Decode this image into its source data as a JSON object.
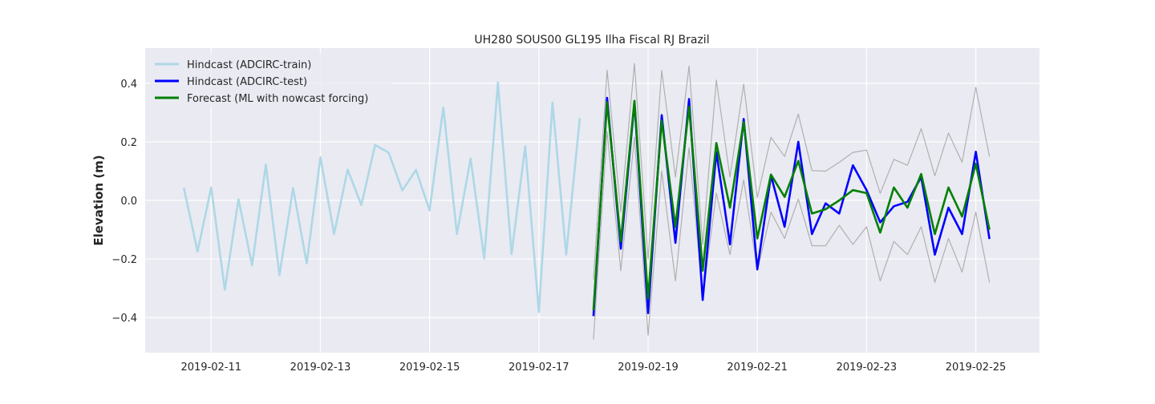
{
  "chart_data": {
    "type": "line",
    "title": "UH280 SOUS00 GL195 Ilha Fiscal RJ Brazil",
    "xlabel": "",
    "ylabel": "Elevation (m)",
    "xlim": [
      "2019-02-09T19:00",
      "2019-02-26T04:00"
    ],
    "ylim": [
      -0.52,
      0.52
    ],
    "grid": true,
    "legend_position": "upper-left",
    "x_ticks": [
      "2019-02-11",
      "2019-02-13",
      "2019-02-15",
      "2019-02-17",
      "2019-02-19",
      "2019-02-21",
      "2019-02-23",
      "2019-02-25"
    ],
    "y_ticks": [
      -0.4,
      -0.2,
      0.0,
      0.2,
      0.4
    ],
    "y_tick_labels": [
      "−0.4",
      "−0.2",
      "0.0",
      "0.2",
      "0.4"
    ],
    "series": [
      {
        "name": "Hindcast (ADCIRC-train)",
        "color": "#add8e6",
        "x": [
          "2019-02-10T12:00",
          "2019-02-10T18:00",
          "2019-02-11T00:00",
          "2019-02-11T06:00",
          "2019-02-11T12:00",
          "2019-02-11T18:00",
          "2019-02-12T00:00",
          "2019-02-12T06:00",
          "2019-02-12T12:00",
          "2019-02-12T18:00",
          "2019-02-13T00:00",
          "2019-02-13T06:00",
          "2019-02-13T12:00",
          "2019-02-13T18:00",
          "2019-02-14T00:00",
          "2019-02-14T06:00",
          "2019-02-14T12:00",
          "2019-02-14T18:00",
          "2019-02-15T00:00",
          "2019-02-15T06:00",
          "2019-02-15T12:00",
          "2019-02-15T18:00",
          "2019-02-16T00:00",
          "2019-02-16T06:00",
          "2019-02-16T12:00",
          "2019-02-16T18:00",
          "2019-02-17T00:00",
          "2019-02-17T06:00",
          "2019-02-17T12:00",
          "2019-02-17T18:00"
        ],
        "y": [
          0.043,
          -0.175,
          0.044,
          -0.305,
          0.004,
          -0.222,
          0.122,
          -0.255,
          0.042,
          -0.215,
          0.147,
          -0.114,
          0.105,
          -0.016,
          0.189,
          0.163,
          0.034,
          0.104,
          -0.034,
          0.317,
          -0.115,
          0.143,
          -0.198,
          0.402,
          -0.183,
          0.185,
          -0.381,
          0.334,
          -0.185,
          0.281
        ]
      },
      {
        "name": "Hindcast (ADCIRC-test)",
        "color": "#0000ff",
        "x": [
          "2019-02-18T00:00",
          "2019-02-18T06:00",
          "2019-02-18T12:00",
          "2019-02-18T18:00",
          "2019-02-19T00:00",
          "2019-02-19T06:00",
          "2019-02-19T12:00",
          "2019-02-19T18:00",
          "2019-02-20T00:00",
          "2019-02-20T06:00",
          "2019-02-20T12:00",
          "2019-02-20T18:00",
          "2019-02-21T00:00",
          "2019-02-21T06:00",
          "2019-02-21T12:00",
          "2019-02-21T18:00",
          "2019-02-22T00:00",
          "2019-02-22T06:00",
          "2019-02-22T12:00",
          "2019-02-22T18:00",
          "2019-02-23T00:00",
          "2019-02-23T06:00",
          "2019-02-23T12:00",
          "2019-02-23T18:00",
          "2019-02-24T00:00",
          "2019-02-24T06:00",
          "2019-02-24T12:00",
          "2019-02-24T18:00",
          "2019-02-25T00:00",
          "2019-02-25T06:00"
        ],
        "y": [
          -0.395,
          0.35,
          -0.165,
          0.335,
          -0.385,
          0.291,
          -0.145,
          0.346,
          -0.34,
          0.165,
          -0.15,
          0.278,
          -0.235,
          0.085,
          -0.09,
          0.2,
          -0.115,
          -0.01,
          -0.045,
          0.12,
          0.035,
          -0.075,
          -0.02,
          -0.005,
          0.08,
          -0.185,
          -0.025,
          -0.115,
          0.166,
          -0.132
        ]
      },
      {
        "name": "Forecast (ML with nowcast forcing)",
        "color": "#008000",
        "x": [
          "2019-02-18T00:00",
          "2019-02-18T06:00",
          "2019-02-18T12:00",
          "2019-02-18T18:00",
          "2019-02-19T00:00",
          "2019-02-19T06:00",
          "2019-02-19T12:00",
          "2019-02-19T18:00",
          "2019-02-20T00:00",
          "2019-02-20T06:00",
          "2019-02-20T12:00",
          "2019-02-20T18:00",
          "2019-02-21T00:00",
          "2019-02-21T06:00",
          "2019-02-21T12:00",
          "2019-02-21T18:00",
          "2019-02-22T00:00",
          "2019-02-22T06:00",
          "2019-02-22T12:00",
          "2019-02-22T18:00",
          "2019-02-23T00:00",
          "2019-02-23T06:00",
          "2019-02-23T12:00",
          "2019-02-23T18:00",
          "2019-02-24T00:00",
          "2019-02-24T06:00",
          "2019-02-24T12:00",
          "2019-02-24T18:00",
          "2019-02-25T00:00",
          "2019-02-25T06:00"
        ],
        "y": [
          -0.375,
          0.335,
          -0.14,
          0.34,
          -0.335,
          0.272,
          -0.09,
          0.32,
          -0.24,
          0.196,
          -0.025,
          0.268,
          -0.13,
          0.088,
          0.012,
          0.135,
          -0.045,
          -0.03,
          0.0,
          0.035,
          0.025,
          -0.11,
          0.044,
          -0.025,
          0.09,
          -0.115,
          0.044,
          -0.055,
          0.125,
          -0.1
        ]
      },
      {
        "name": "",
        "color": "#b0b0b0",
        "x": [
          "2019-02-18T00:00",
          "2019-02-18T06:00",
          "2019-02-18T12:00",
          "2019-02-18T18:00",
          "2019-02-19T00:00",
          "2019-02-19T06:00",
          "2019-02-19T12:00",
          "2019-02-19T18:00",
          "2019-02-20T00:00",
          "2019-02-20T06:00",
          "2019-02-20T12:00",
          "2019-02-20T18:00",
          "2019-02-21T00:00",
          "2019-02-21T06:00",
          "2019-02-21T12:00",
          "2019-02-21T18:00",
          "2019-02-22T00:00",
          "2019-02-22T06:00",
          "2019-02-22T12:00",
          "2019-02-22T18:00",
          "2019-02-23T00:00",
          "2019-02-23T06:00",
          "2019-02-23T12:00",
          "2019-02-23T18:00",
          "2019-02-24T00:00",
          "2019-02-24T06:00",
          "2019-02-24T12:00",
          "2019-02-24T18:00",
          "2019-02-25T00:00",
          "2019-02-25T06:00"
        ],
        "y": [
          -0.27,
          0.445,
          -0.04,
          0.467,
          -0.2,
          0.444,
          0.08,
          0.459,
          -0.15,
          0.411,
          0.08,
          0.397,
          0.01,
          0.215,
          0.15,
          0.295,
          0.102,
          0.1,
          0.13,
          0.164,
          0.172,
          0.024,
          0.14,
          0.12,
          0.245,
          0.084,
          0.23,
          0.13,
          0.386,
          0.15
        ]
      },
      {
        "name": "",
        "color": "#b0b0b0",
        "x": [
          "2019-02-18T00:00",
          "2019-02-18T06:00",
          "2019-02-18T12:00",
          "2019-02-18T18:00",
          "2019-02-19T00:00",
          "2019-02-19T06:00",
          "2019-02-19T12:00",
          "2019-02-19T18:00",
          "2019-02-20T00:00",
          "2019-02-20T06:00",
          "2019-02-20T12:00",
          "2019-02-20T18:00",
          "2019-02-21T00:00",
          "2019-02-21T06:00",
          "2019-02-21T12:00",
          "2019-02-21T18:00",
          "2019-02-22T00:00",
          "2019-02-22T06:00",
          "2019-02-22T12:00",
          "2019-02-22T18:00",
          "2019-02-23T00:00",
          "2019-02-23T06:00",
          "2019-02-23T12:00",
          "2019-02-23T18:00",
          "2019-02-24T00:00",
          "2019-02-24T06:00",
          "2019-02-24T12:00",
          "2019-02-24T18:00",
          "2019-02-25T00:00",
          "2019-02-25T06:00"
        ],
        "y": [
          -0.475,
          0.235,
          -0.24,
          0.215,
          -0.46,
          0.1,
          -0.275,
          0.18,
          -0.33,
          0.025,
          -0.185,
          0.07,
          -0.24,
          -0.04,
          -0.13,
          0.005,
          -0.155,
          -0.155,
          -0.085,
          -0.15,
          -0.09,
          -0.275,
          -0.14,
          -0.185,
          -0.09,
          -0.28,
          -0.13,
          -0.245,
          -0.04,
          -0.28
        ]
      }
    ]
  }
}
